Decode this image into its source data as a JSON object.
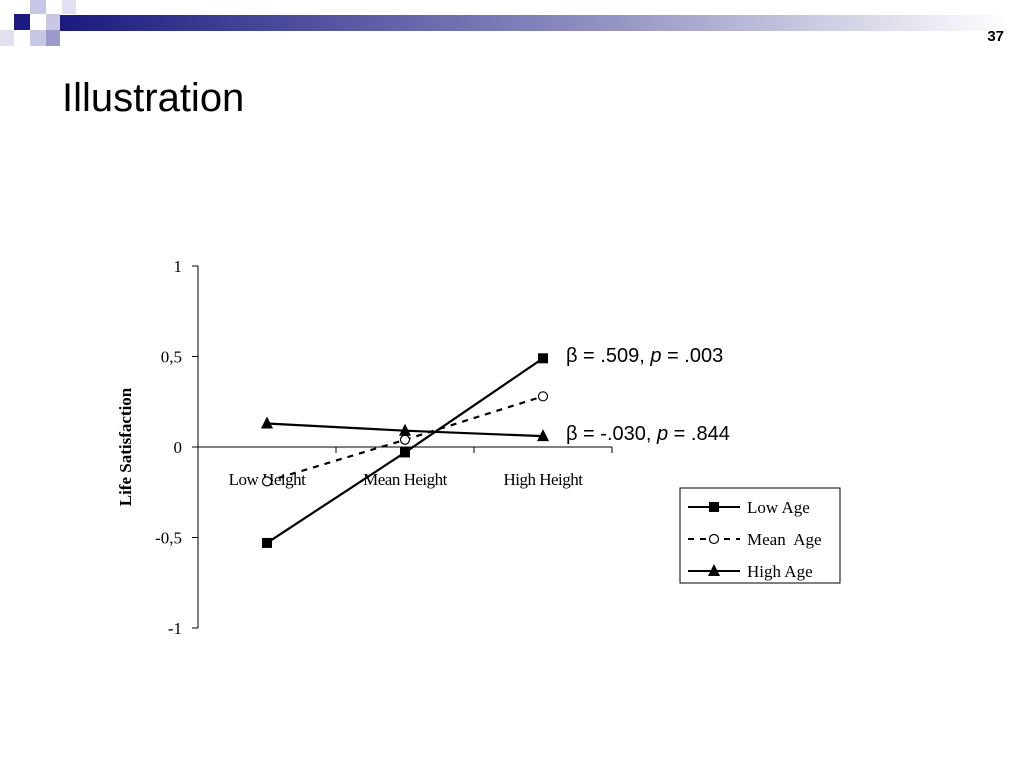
{
  "slide_number": "37",
  "title": "Illustration",
  "chart_data": {
    "type": "line",
    "y_label": "Life Satisfaction",
    "categories": [
      "Low Height",
      "Mean Height",
      "High Height"
    ],
    "ylim": [
      -1,
      1
    ],
    "yticks": [
      -1,
      {
        "value": -0.5,
        "label": "-0,5"
      },
      0,
      {
        "value": 0.5,
        "label": "0,5"
      },
      1
    ],
    "series": [
      {
        "name": "Low Age",
        "color": "#000000",
        "marker": "square",
        "dash": false,
        "values": [
          -0.53,
          -0.03,
          0.49
        ]
      },
      {
        "name": "Mean  Age",
        "color": "#000000",
        "marker": "circle",
        "dash": true,
        "values": [
          -0.19,
          0.04,
          0.28
        ]
      },
      {
        "name": "High Age",
        "color": "#000000",
        "marker": "triangle",
        "dash": false,
        "values": [
          0.13,
          0.09,
          0.06
        ]
      }
    ],
    "annotations": [
      {
        "parts": [
          "β = .509, ",
          "p",
          " = .003"
        ]
      },
      {
        "parts": [
          "β = -.030, ",
          "p",
          " = .844"
        ]
      }
    ]
  }
}
